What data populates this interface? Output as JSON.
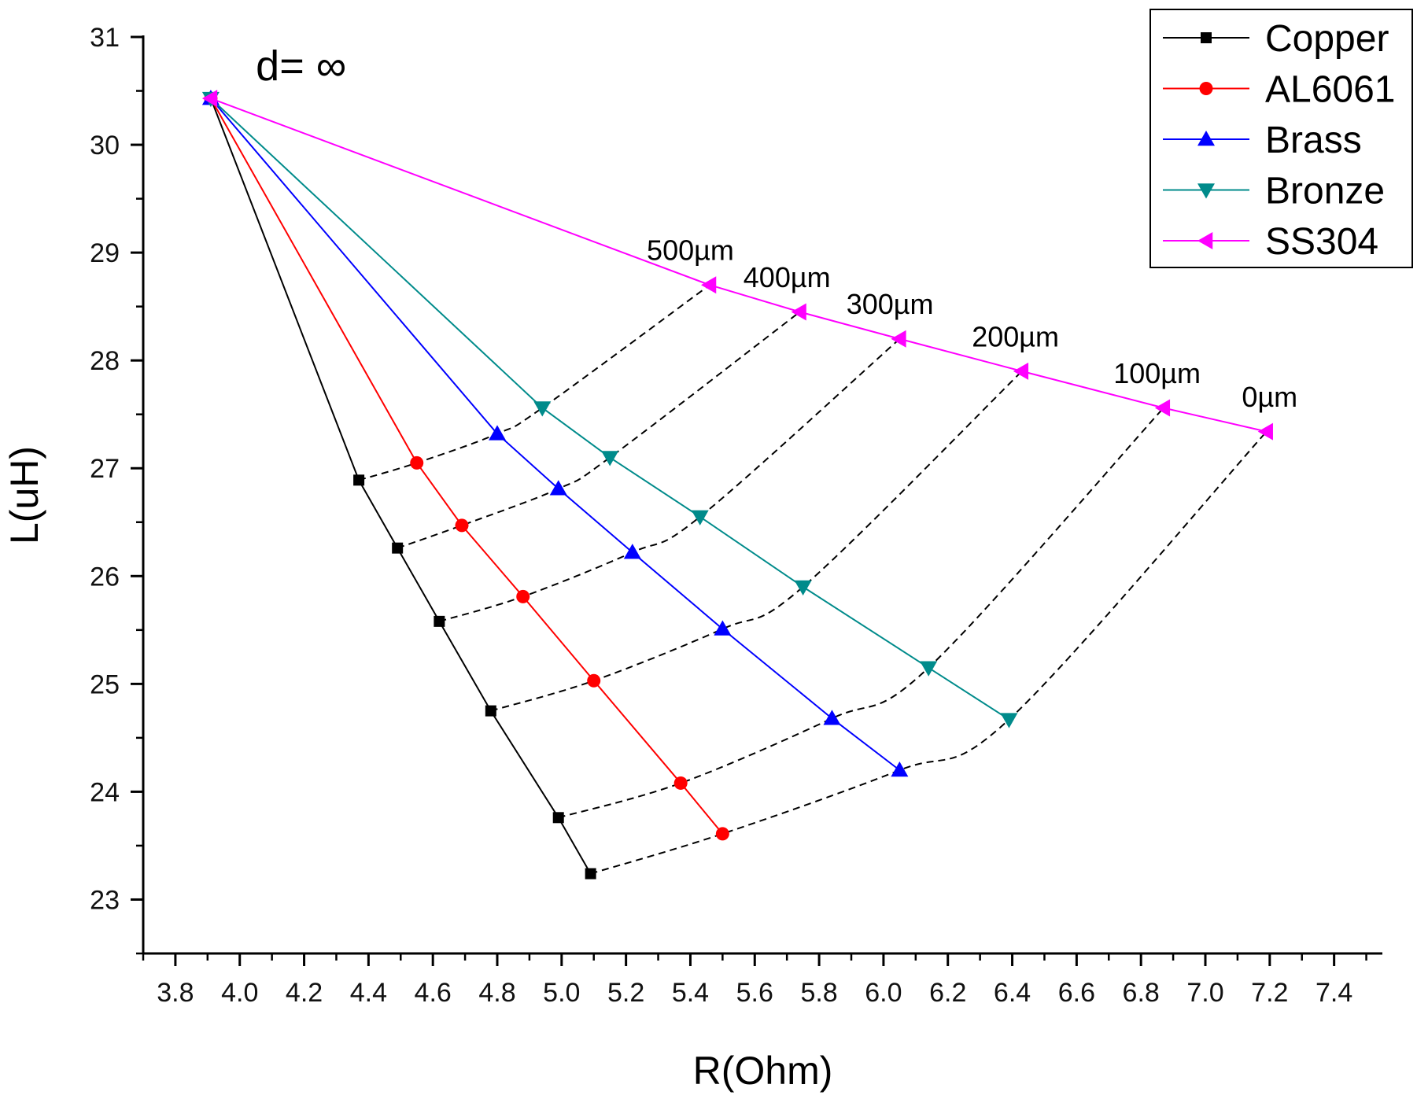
{
  "chart_data": {
    "type": "line",
    "title": "",
    "xlabel": "R(Ohm)",
    "ylabel": "L(uH)",
    "xlim": [
      3.7,
      7.55
    ],
    "ylim": [
      22.5,
      31
    ],
    "x_ticks": [
      "3.8",
      "4.0",
      "4.2",
      "4.4",
      "4.6",
      "4.8",
      "5.0",
      "5.2",
      "5.4",
      "5.6",
      "5.8",
      "6.0",
      "6.2",
      "6.4",
      "6.6",
      "6.8",
      "7.0",
      "7.2",
      "7.4"
    ],
    "y_ticks": [
      "23",
      "24",
      "25",
      "26",
      "27",
      "28",
      "29",
      "30",
      "31"
    ],
    "legend_position": "top-right",
    "series": [
      {
        "name": "Copper",
        "color": "#000000",
        "marker": "square",
        "x": [
          3.91,
          4.37,
          4.49,
          4.62,
          4.78,
          4.99,
          5.09
        ],
        "y": [
          30.43,
          26.89,
          26.26,
          25.58,
          24.75,
          23.76,
          23.24
        ]
      },
      {
        "name": "AL6061",
        "color": "#ff0000",
        "marker": "circle",
        "x": [
          3.91,
          4.55,
          4.69,
          4.88,
          5.1,
          5.37,
          5.5
        ],
        "y": [
          30.43,
          27.05,
          26.47,
          25.81,
          25.03,
          24.08,
          23.61
        ]
      },
      {
        "name": "Brass",
        "color": "#0000ff",
        "marker": "triangle-up",
        "x": [
          3.91,
          4.8,
          4.99,
          5.22,
          5.5,
          5.84,
          6.05
        ],
        "y": [
          30.43,
          27.32,
          26.81,
          26.22,
          25.51,
          24.68,
          24.2
        ]
      },
      {
        "name": "Bronze",
        "color": "#008b8b",
        "marker": "triangle-down",
        "x": [
          3.91,
          4.94,
          5.15,
          5.43,
          5.75,
          6.14,
          6.39
        ],
        "y": [
          30.43,
          27.56,
          27.1,
          26.55,
          25.9,
          25.15,
          24.67
        ]
      },
      {
        "name": "SS304",
        "color": "#ff00ff",
        "marker": "triangle-left",
        "x": [
          3.91,
          5.46,
          5.74,
          6.05,
          6.43,
          6.87,
          7.19
        ],
        "y": [
          30.43,
          28.7,
          28.45,
          28.2,
          27.9,
          27.56,
          27.34
        ]
      }
    ],
    "annotations": [
      {
        "text": "d= ∞",
        "x": 4.05,
        "y": 30.6
      },
      {
        "text": "500µm",
        "x": 5.4,
        "y": 28.93
      },
      {
        "text": "400µm",
        "x": 5.7,
        "y": 28.68
      },
      {
        "text": "300µm",
        "x": 6.02,
        "y": 28.43
      },
      {
        "text": "200µm",
        "x": 6.41,
        "y": 28.13
      },
      {
        "text": "100µm",
        "x": 6.85,
        "y": 27.79
      },
      {
        "text": "0µm",
        "x": 7.2,
        "y": 27.57
      }
    ]
  }
}
